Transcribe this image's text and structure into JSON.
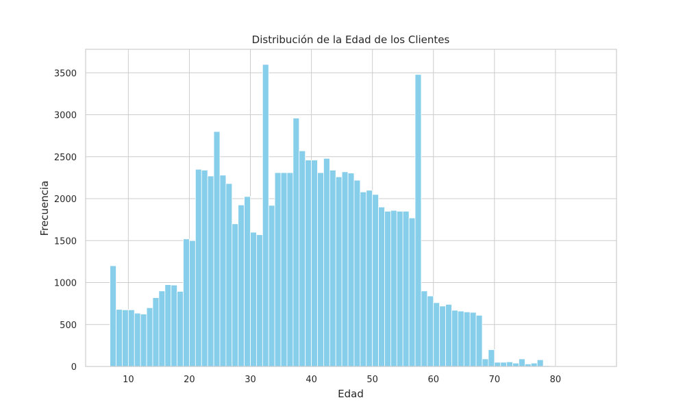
{
  "chart_data": {
    "type": "bar",
    "title": "Distribución de la Edad de los Clientes",
    "xlabel": "Edad",
    "ylabel": "Frecuencia",
    "xlim": [
      3,
      90
    ],
    "ylim": [
      0,
      3780
    ],
    "xticks": [
      10,
      20,
      30,
      40,
      50,
      60,
      70,
      80
    ],
    "yticks": [
      0,
      500,
      1000,
      1500,
      2000,
      2500,
      3000,
      3500
    ],
    "grid": true,
    "bar_color": "#87ceeb",
    "bins_start": 7,
    "bin_width": 1,
    "values": [
      1200,
      680,
      675,
      675,
      635,
      625,
      700,
      820,
      900,
      975,
      970,
      895,
      1520,
      1500,
      2350,
      2340,
      2270,
      2800,
      2280,
      2180,
      1700,
      1925,
      2025,
      1600,
      1570,
      3600,
      1920,
      2310,
      2310,
      2310,
      2960,
      2570,
      2460,
      2460,
      2310,
      2480,
      2340,
      2260,
      2320,
      2305,
      2220,
      2080,
      2100,
      2050,
      1900,
      1850,
      1860,
      1850,
      1850,
      1770,
      3480,
      900,
      840,
      760,
      720,
      740,
      670,
      660,
      650,
      645,
      610,
      90,
      200,
      50,
      50,
      55,
      40,
      90,
      30,
      40,
      80,
      10,
      5,
      5,
      5,
      5,
      5,
      5,
      5
    ]
  }
}
